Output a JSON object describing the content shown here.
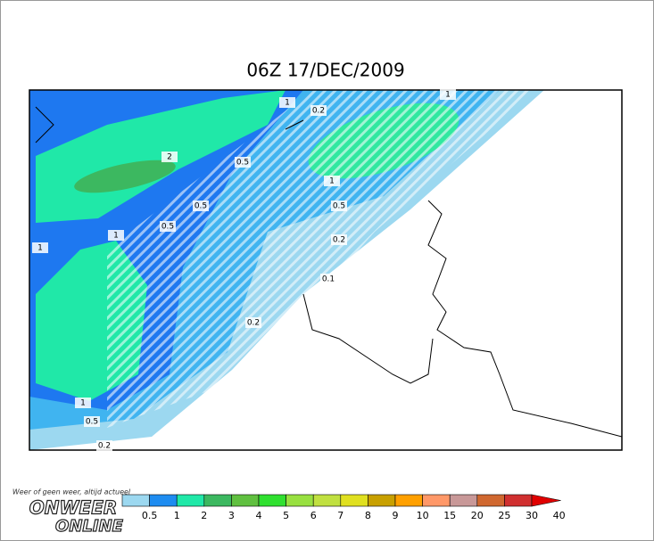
{
  "title": "06Z 17/DEC/2009",
  "contour_labels": [
    1,
    0.2,
    2,
    0.5,
    1,
    0.5,
    0.5,
    0.5,
    1,
    1,
    0.2,
    0.1,
    0.2,
    1,
    0.5,
    0.2,
    1
  ],
  "colorbar": {
    "labels": [
      0.5,
      1,
      2,
      3,
      4,
      5,
      6,
      7,
      8,
      9,
      10,
      15,
      20,
      25,
      30,
      40
    ],
    "colors": [
      "#9cd8f0",
      "#1e8cf0",
      "#20e8a8",
      "#3cb860",
      "#60c040",
      "#30e030",
      "#98e040",
      "#c0e040",
      "#e0e020",
      "#c8a000",
      "#ffa000",
      "#ff9868",
      "#c89898",
      "#d06830",
      "#d03030",
      "#e00000"
    ]
  },
  "logo": {
    "tagline": "Weer of geen weer, altijd actueel",
    "line1": "ONWEER",
    "line2": "ONLINE"
  }
}
